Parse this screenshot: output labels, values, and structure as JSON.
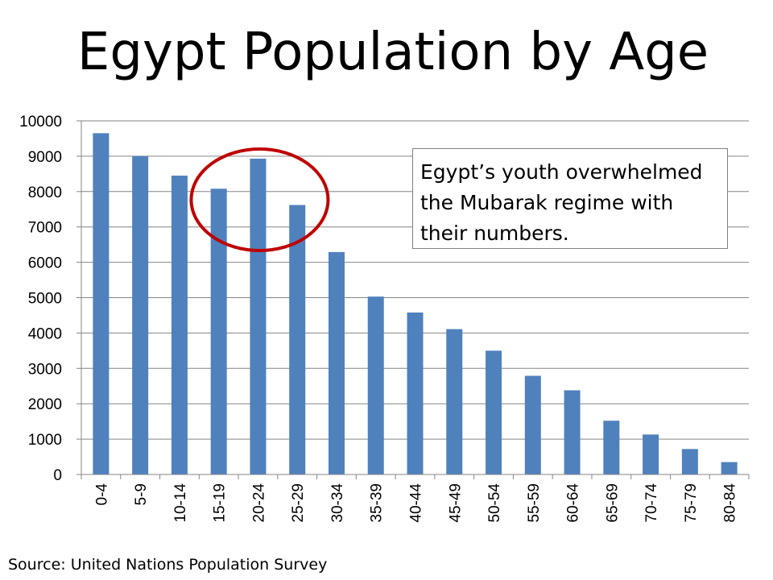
{
  "slide": {
    "source": "Source: United Nations Population Survey"
  },
  "callout": {
    "text": "Egypt’s youth overwhelmed the Mubarak regime with their numbers."
  },
  "colors": {
    "bar": "#4f81bd",
    "highlight_circle": "#c00000",
    "grid": "#868686"
  },
  "chart_data": {
    "type": "bar",
    "title": "Egypt Population by Age",
    "xlabel": "",
    "ylabel": "",
    "ylim": [
      0,
      10000
    ],
    "yticks": [
      0,
      1000,
      2000,
      3000,
      4000,
      5000,
      6000,
      7000,
      8000,
      9000,
      10000
    ],
    "grid": true,
    "legend": "none",
    "categories": [
      "0-4",
      "5-9",
      "10-14",
      "15-19",
      "20-24",
      "25-29",
      "30-34",
      "35-39",
      "40-44",
      "45-49",
      "50-54",
      "55-59",
      "60-64",
      "65-69",
      "70-74",
      "75-79",
      "80-84"
    ],
    "values": [
      9650,
      9000,
      8450,
      8080,
      8930,
      7620,
      6290,
      5030,
      4580,
      4110,
      3500,
      2790,
      2380,
      1520,
      1130,
      720,
      350
    ],
    "annotation": {
      "type": "ellipse",
      "highlights": [
        "15-19",
        "20-24",
        "25-29"
      ]
    }
  }
}
